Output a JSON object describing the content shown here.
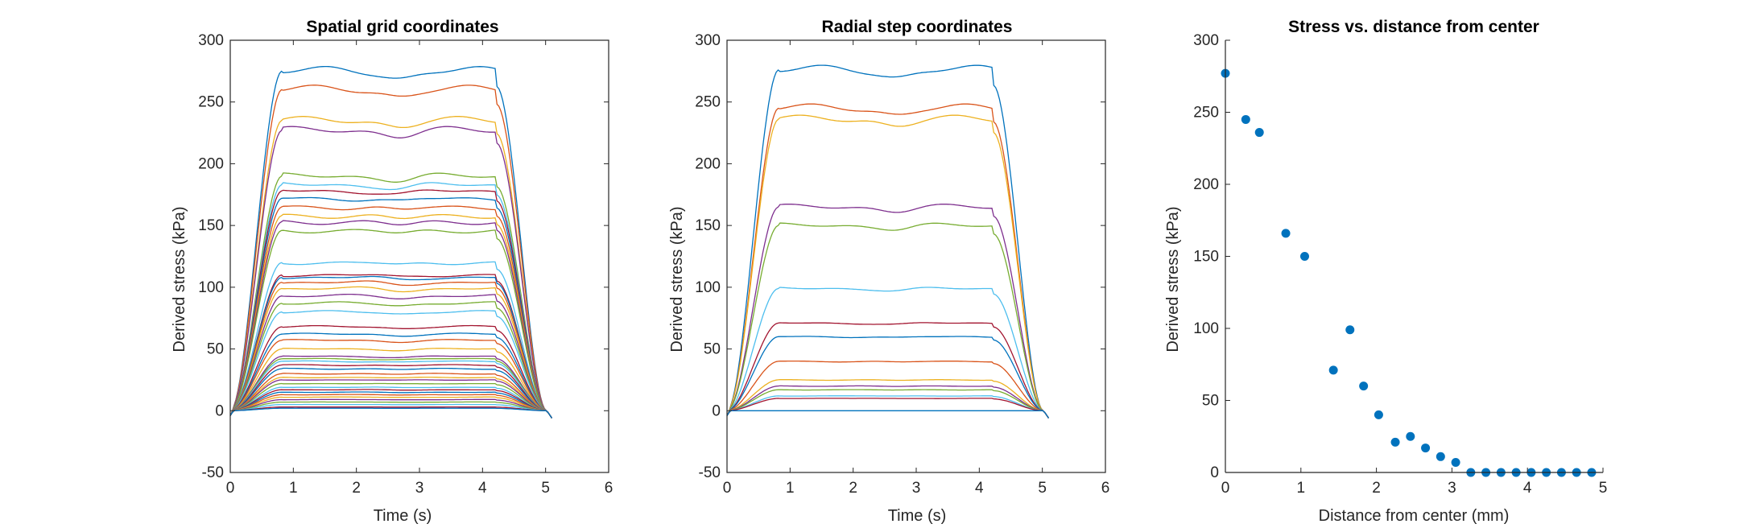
{
  "colors": {
    "palette": [
      "#0072BD",
      "#D95319",
      "#EDB120",
      "#7E2F8E",
      "#77AC30",
      "#4DBEEE",
      "#A2142F"
    ],
    "marker": "#0072BD",
    "axes": "#262626"
  },
  "chart_data": [
    {
      "type": "line",
      "title": "Spatial grid coordinates",
      "xlabel": "Time (s)",
      "ylabel": "Derived stress (kPa)",
      "xlim": [
        0,
        6
      ],
      "ylim": [
        -50,
        300
      ],
      "xticks": [
        0,
        1,
        2,
        3,
        4,
        5,
        6
      ],
      "yticks": [
        -50,
        0,
        50,
        100,
        150,
        200,
        250,
        300
      ],
      "grid": false,
      "legend": "none",
      "profile": "ramp up 0-0.8 s, plateau to 4.2 s, ramp down to 5.0 s",
      "series_plateau_kPa": [
        275,
        260,
        235,
        227,
        190,
        183,
        178,
        172,
        165,
        158,
        153,
        146,
        120,
        110,
        108,
        104,
        99,
        93,
        87,
        80,
        68,
        62,
        57,
        50,
        44,
        42,
        40,
        37,
        34,
        30,
        27,
        25,
        22,
        19,
        17,
        15,
        13,
        11,
        9,
        7,
        5,
        3,
        2
      ]
    },
    {
      "type": "line",
      "title": "Radial step coordinates",
      "xlabel": "Time (s)",
      "ylabel": "Derived stress (kPa)",
      "xlim": [
        0,
        6
      ],
      "ylim": [
        -50,
        300
      ],
      "xticks": [
        0,
        1,
        2,
        3,
        4,
        5,
        6
      ],
      "yticks": [
        -50,
        0,
        50,
        100,
        150,
        200,
        250,
        300
      ],
      "grid": false,
      "legend": "none",
      "profile": "ramp up 0-0.8 s, plateau to 4.2 s, ramp down to 5.0 s",
      "series_plateau_kPa": [
        276,
        245,
        236,
        165,
        150,
        99,
        71,
        60,
        40,
        25,
        20,
        17,
        12,
        10,
        0
      ]
    },
    {
      "type": "scatter",
      "title": "Stress vs. distance from center",
      "xlabel": "Distance from center (mm)",
      "ylabel": "Derived stress (kPa)",
      "xlim": [
        0,
        5
      ],
      "ylim": [
        0,
        300
      ],
      "xticks": [
        0,
        1,
        2,
        3,
        4,
        5
      ],
      "yticks": [
        0,
        50,
        100,
        150,
        200,
        250,
        300
      ],
      "grid": false,
      "legend": "none",
      "x": [
        0,
        0.27,
        0.45,
        0.8,
        1.05,
        1.43,
        1.65,
        1.83,
        2.03,
        2.25,
        2.45,
        2.65,
        2.85,
        3.05,
        3.25,
        3.45,
        3.65,
        3.85,
        4.05,
        4.25,
        4.45,
        4.65,
        4.85
      ],
      "y": [
        277,
        245,
        236,
        166,
        150,
        71,
        99,
        60,
        40,
        21,
        25,
        17,
        11,
        7,
        0,
        0,
        0,
        0,
        0,
        0,
        0,
        0,
        0
      ]
    }
  ]
}
